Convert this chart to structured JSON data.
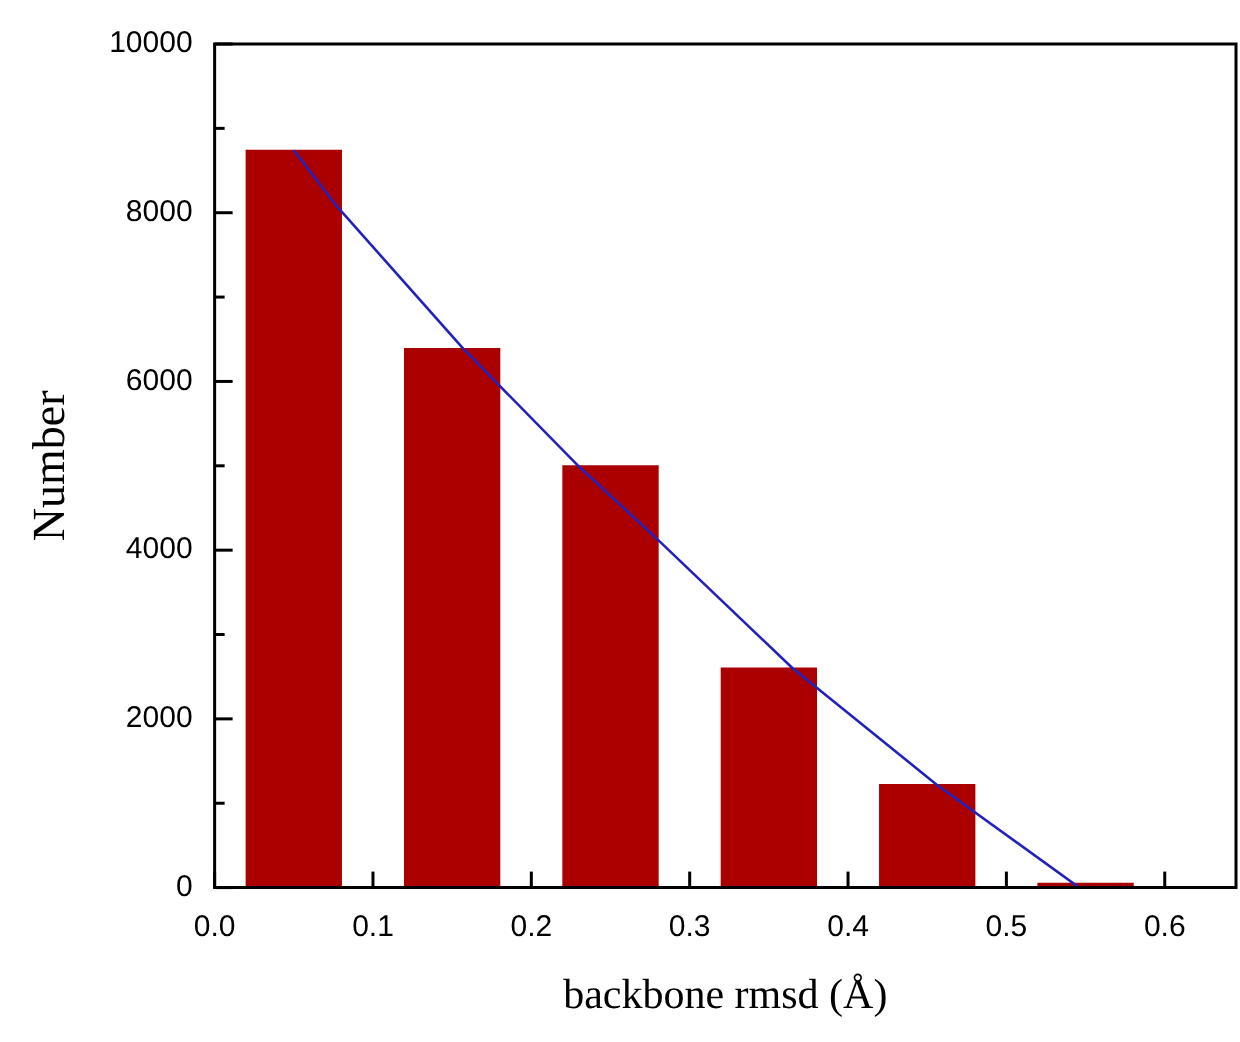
{
  "chart_data": {
    "type": "bar",
    "xlabel": "backbone rmsd (Å)",
    "ylabel": "Number",
    "series": [
      {
        "color": "#aa0000",
        "x": [
          0.05,
          0.15,
          0.25,
          0.35,
          0.45,
          0.55
        ],
        "values": [
          8740,
          6390,
          5000,
          2600,
          1220,
          50
        ]
      },
      {
        "type": "line",
        "color": "#2222bb",
        "x": [
          0.05,
          0.077,
          0.157,
          0.229,
          0.279,
          0.365,
          0.456,
          0.546
        ],
        "values": [
          8740,
          8080,
          6390,
          5010,
          4140,
          2600,
          1220,
          0
        ]
      }
    ],
    "xlim": [
      0,
      0.645
    ],
    "xticks": [
      {
        "value": 0,
        "label": "0.0"
      },
      0.1,
      0.2,
      0.3,
      0.4,
      0.5,
      0.6
    ],
    "ylim": [
      0,
      10000
    ],
    "yticks": [
      0,
      {
        "value": 1000,
        "label": null
      },
      2000,
      {
        "value": 3000,
        "label": null
      },
      4000,
      {
        "value": 5000,
        "label": null
      },
      6000,
      {
        "value": 7000,
        "label": null
      },
      8000,
      {
        "value": 9000,
        "label": null
      },
      10000
    ],
    "marker": "none"
  }
}
